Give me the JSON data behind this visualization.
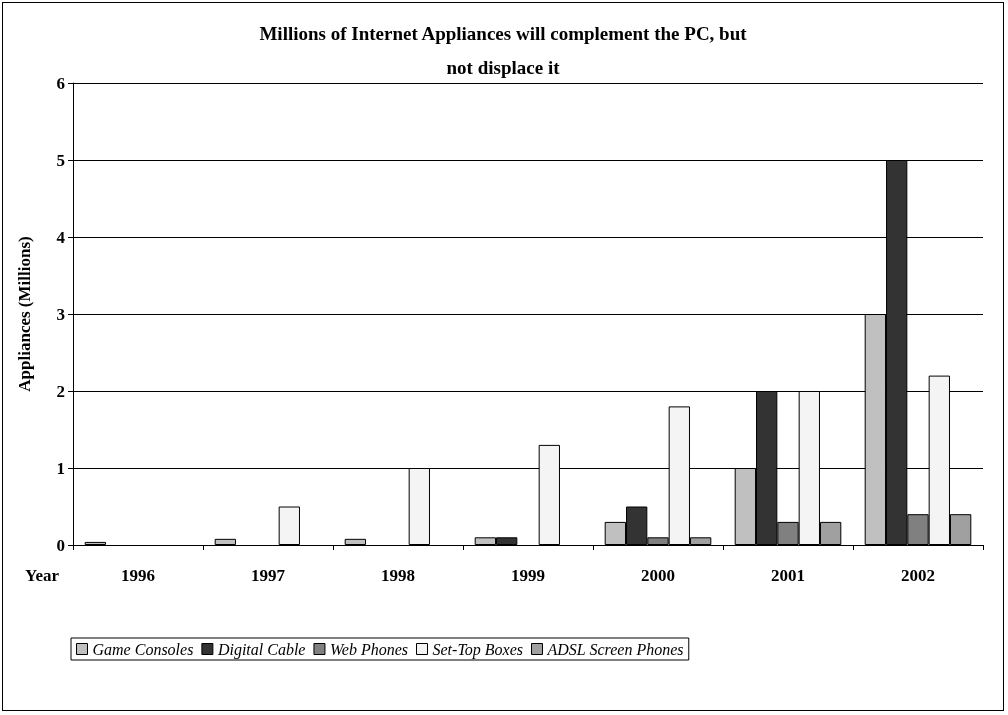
{
  "chart_data": {
    "type": "bar",
    "title": "Millions of Internet Appliances will complement the PC, but\nnot displace it",
    "ylabel": "Appliances (Millions)",
    "xlabel": "Year",
    "categories": [
      "1996",
      "1997",
      "1998",
      "1999",
      "2000",
      "2001",
      "2002"
    ],
    "series": [
      {
        "name": "Game Consoles",
        "color": "#c0c0c0",
        "values": [
          0.04,
          0.08,
          0.08,
          0.1,
          0.3,
          1,
          3
        ]
      },
      {
        "name": "Digital Cable",
        "color": "#333333",
        "values": [
          null,
          null,
          null,
          0.1,
          0.5,
          2,
          5
        ]
      },
      {
        "name": "Web Phones",
        "color": "#808080",
        "values": [
          null,
          null,
          null,
          null,
          0.1,
          0.3,
          0.4
        ]
      },
      {
        "name": "Set-Top Boxes",
        "color": "#f4f4f4",
        "values": [
          null,
          0.5,
          1,
          1.3,
          1.8,
          2,
          2.2
        ]
      },
      {
        "name": "ADSL Screen Phones",
        "color": "#a0a0a0",
        "values": [
          null,
          null,
          null,
          null,
          0.1,
          0.3,
          0.4
        ]
      }
    ],
    "ylim": [
      0,
      6
    ],
    "yticks": [
      0,
      1,
      2,
      3,
      4,
      5,
      6
    ],
    "grid": "y",
    "legend": "bottom"
  }
}
